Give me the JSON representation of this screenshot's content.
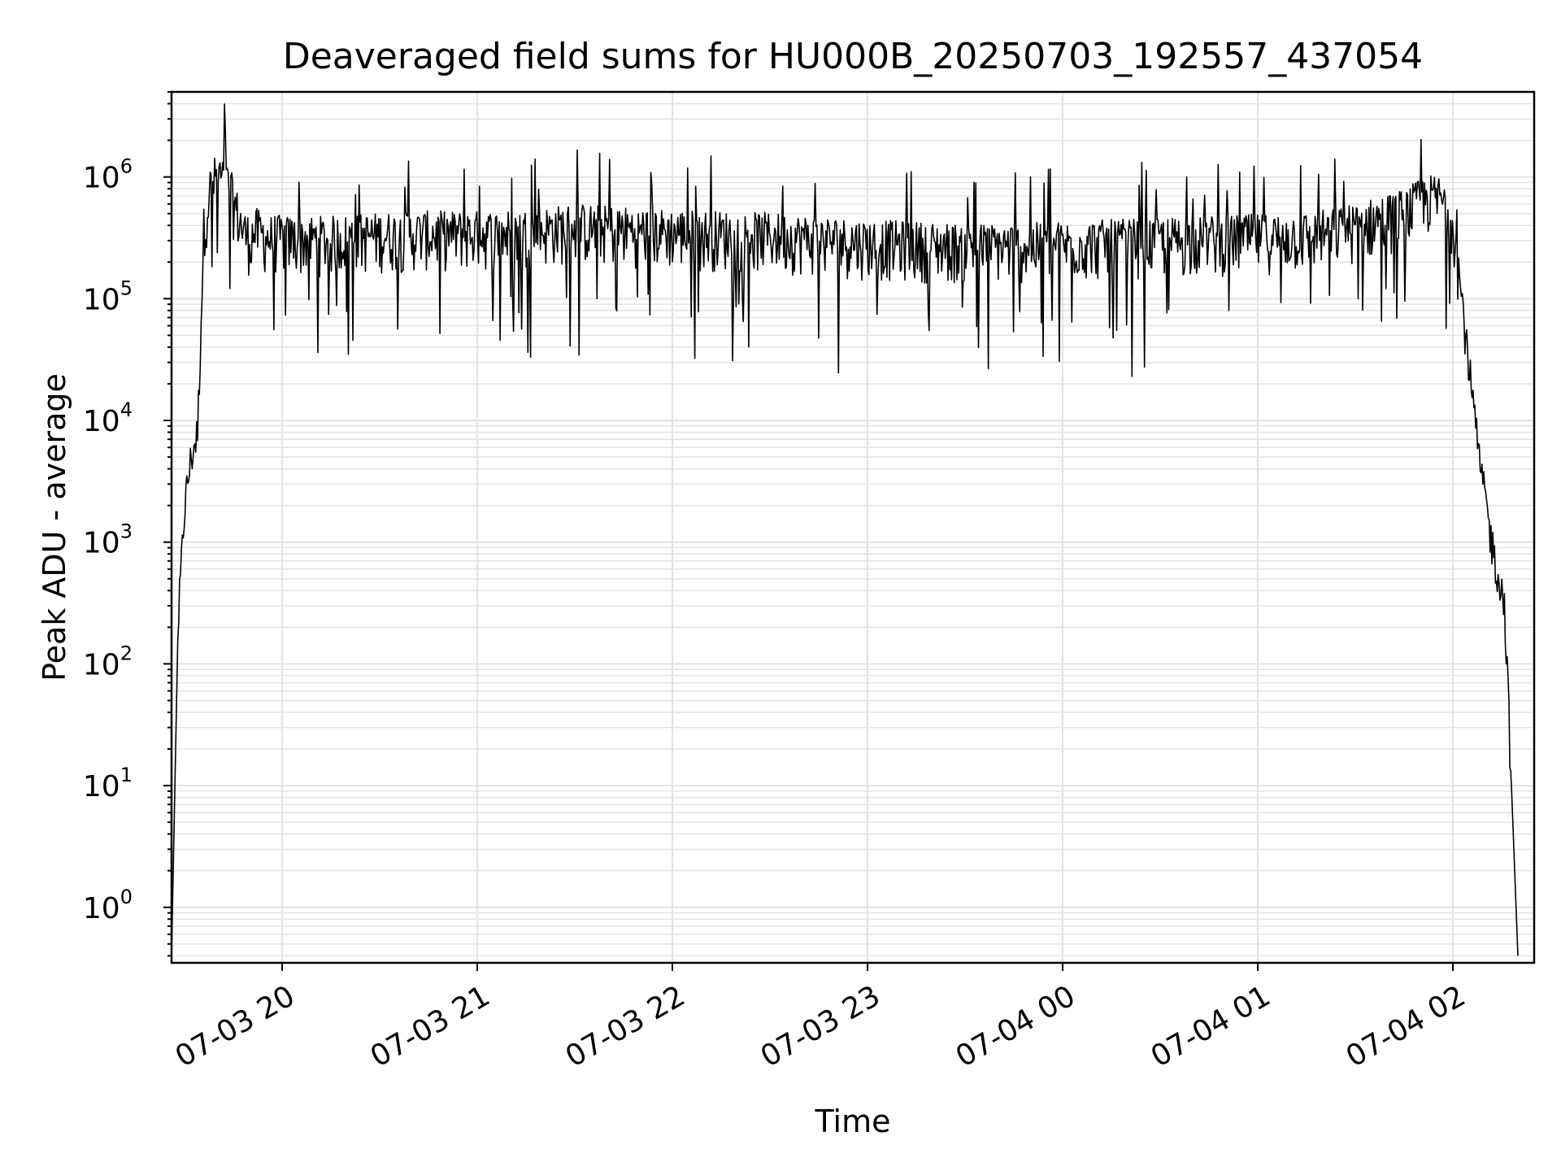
{
  "chart_data": {
    "type": "line",
    "title": "Deaveraged field sums for HU000B_20250703_192557_437054",
    "xlabel": "Time",
    "ylabel": "Peak ADU - average",
    "yscale": "log",
    "xlim": [
      "07-03 19:26",
      "07-04 02:25"
    ],
    "ylim": [
      0.35,
      5000000
    ],
    "x_ticks": [
      "07-03 20",
      "07-03 21",
      "07-03 22",
      "07-03 23",
      "07-04 00",
      "07-04 01",
      "07-04 02"
    ],
    "y_ticks": [
      {
        "base": "10",
        "exp": "0"
      },
      {
        "base": "10",
        "exp": "1"
      },
      {
        "base": "10",
        "exp": "2"
      },
      {
        "base": "10",
        "exp": "3"
      },
      {
        "base": "10",
        "exp": "4"
      },
      {
        "base": "10",
        "exp": "5"
      },
      {
        "base": "10",
        "exp": "6"
      }
    ],
    "grid": "major and minor",
    "line_color": "#000000",
    "grid_color": "#e3e3e3",
    "series": [
      {
        "x": [
          "07-03 19:26",
          "07-03 19:28",
          "07-03 19:30",
          "07-03 19:32",
          "07-03 19:34",
          "07-03 19:36",
          "07-03 19:38",
          "07-03 19:40",
          "07-03 19:42",
          "07-03 19:44",
          "07-03 19:46",
          "07-03 19:48",
          "07-03 19:50",
          "07-03 19:52",
          "07-03 19:54",
          "07-03 19:56",
          "07-03 19:58",
          "07-03 20:00",
          "07-03 20:15",
          "07-03 20:30",
          "07-03 20:45",
          "07-03 21:00",
          "07-03 21:15",
          "07-03 21:30",
          "07-03 21:45",
          "07-03 22:00",
          "07-03 22:15",
          "07-03 22:30",
          "07-03 22:45",
          "07-03 23:00",
          "07-03 23:15",
          "07-03 23:30",
          "07-03 23:45",
          "07-04 00:00",
          "07-04 00:15",
          "07-04 00:30",
          "07-04 00:45",
          "07-04 01:00",
          "07-04 01:15",
          "07-04 01:30",
          "07-04 01:45",
          "07-04 01:52",
          "07-04 01:56",
          "07-04 02:00",
          "07-04 02:04",
          "07-04 02:08",
          "07-04 02:12",
          "07-04 02:16",
          "07-04 02:18",
          "07-04 02:20"
        ],
        "y": [
          0.4,
          200,
          2000,
          5000,
          8000,
          400000,
          800000,
          1000000,
          900000,
          750000,
          500000,
          350000,
          300000,
          350000,
          320000,
          300000,
          310000,
          300000,
          300000,
          320000,
          330000,
          330000,
          340000,
          380000,
          360000,
          340000,
          330000,
          320000,
          300000,
          280000,
          270000,
          260000,
          260000,
          270000,
          280000,
          290000,
          300000,
          310000,
          320000,
          380000,
          500000,
          650000,
          650000,
          450000,
          50000,
          5000,
          1000,
          300,
          10,
          0.4
        ]
      }
    ]
  }
}
